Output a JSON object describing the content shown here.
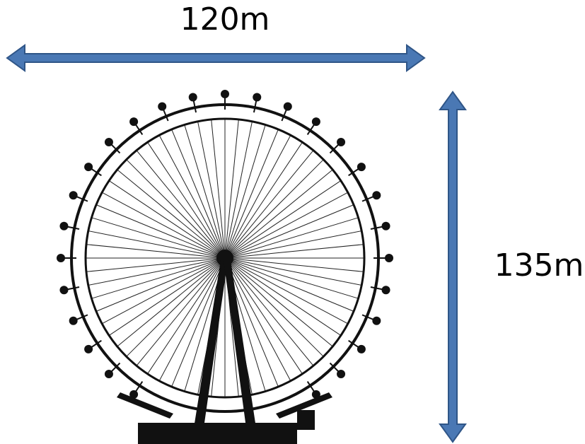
{
  "labels": {
    "width": "120m",
    "height": "135m"
  }
}
